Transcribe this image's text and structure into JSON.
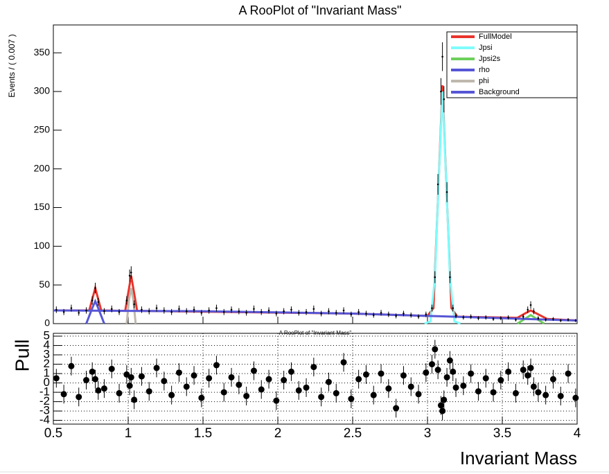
{
  "chart_data": [
    {
      "type": "scatter",
      "title": "A RooPlot of \"Invariant Mass\"",
      "y_label": "Events / ( 0.007 )",
      "xlim": [
        0.5,
        4
      ],
      "ylim": [
        0,
        386
      ],
      "xticks": [
        0.5,
        1,
        1.5,
        2,
        2.5,
        3,
        3.5,
        4
      ],
      "yticks": [
        0,
        50,
        100,
        150,
        200,
        250,
        300,
        350
      ],
      "color": "#000000",
      "legend": "top-right",
      "x": [
        0.52,
        0.57,
        0.62,
        0.67,
        0.72,
        0.76,
        0.78,
        0.8,
        0.84,
        0.89,
        0.94,
        0.99,
        1.01,
        1.02,
        1.04,
        1.09,
        1.14,
        1.19,
        1.24,
        1.29,
        1.34,
        1.39,
        1.44,
        1.49,
        1.54,
        1.59,
        1.64,
        1.69,
        1.74,
        1.79,
        1.84,
        1.89,
        1.94,
        1.99,
        2.04,
        2.09,
        2.14,
        2.19,
        2.24,
        2.29,
        2.34,
        2.39,
        2.44,
        2.49,
        2.54,
        2.59,
        2.64,
        2.69,
        2.74,
        2.79,
        2.84,
        2.89,
        2.94,
        2.99,
        3.03,
        3.05,
        3.07,
        3.09,
        3.1,
        3.11,
        3.13,
        3.15,
        3.17,
        3.19,
        3.24,
        3.29,
        3.34,
        3.39,
        3.44,
        3.49,
        3.54,
        3.59,
        3.64,
        3.67,
        3.69,
        3.71,
        3.74,
        3.79,
        3.84,
        3.89,
        3.94,
        3.99
      ],
      "values": [
        18,
        15,
        20,
        14,
        17,
        30,
        46,
        28,
        16,
        19,
        15,
        30,
        62,
        66,
        25,
        18,
        16,
        20,
        17,
        15,
        19,
        16,
        18,
        14,
        17,
        20,
        15,
        18,
        16,
        14,
        19,
        15,
        17,
        13,
        16,
        18,
        14,
        15,
        19,
        13,
        16,
        14,
        17,
        12,
        15,
        13,
        11,
        14,
        12,
        10,
        13,
        11,
        9,
        12,
        20,
        60,
        180,
        300,
        345,
        290,
        170,
        60,
        20,
        10,
        8,
        9,
        7,
        8,
        6,
        7,
        8,
        5,
        9,
        18,
        24,
        16,
        7,
        5,
        6,
        4,
        5,
        4
      ],
      "errors": [
        4.2,
        3.9,
        4.5,
        3.7,
        4.1,
        5.5,
        6.8,
        5.3,
        4,
        4.4,
        3.9,
        5.5,
        7.9,
        8.1,
        5,
        4.2,
        4,
        4.5,
        4.1,
        3.9,
        4.4,
        4,
        4.2,
        3.7,
        4.1,
        4.5,
        3.9,
        4.2,
        4,
        3.7,
        4.4,
        3.9,
        4.1,
        3.6,
        4,
        4.2,
        3.7,
        3.9,
        4.4,
        3.6,
        4,
        3.7,
        4.1,
        3.5,
        3.9,
        3.6,
        3.3,
        3.7,
        3.5,
        3.2,
        3.6,
        3.3,
        3,
        3.5,
        4.5,
        7.7,
        13.4,
        17.3,
        18.6,
        17,
        13,
        7.7,
        4.5,
        3.2,
        2.8,
        3,
        2.6,
        2.8,
        2.4,
        2.6,
        2.8,
        2.2,
        3,
        4.2,
        4.9,
        4,
        2.6,
        2.2,
        2.4,
        2,
        2.2,
        2
      ],
      "series": [
        {
          "name": "FullModel",
          "color": "#e8342c",
          "x": [
            0.5,
            0.74,
            0.78,
            0.82,
            0.98,
            1.02,
            1.06,
            2.5,
            3.0,
            3.04,
            3.07,
            3.1,
            3.13,
            3.16,
            3.2,
            3.6,
            3.66,
            3.69,
            3.72,
            3.8,
            4
          ],
          "values": [
            17,
            17,
            46,
            17,
            16.5,
            62,
            16.5,
            13,
            10,
            20,
            160,
            308,
            160,
            20,
            9,
            7.5,
            14,
            17,
            14,
            6,
            4
          ]
        },
        {
          "name": "Jpsi",
          "color": "#7ffcfc",
          "x": [
            2.98,
            3.02,
            3.05,
            3.07,
            3.1,
            3.13,
            3.15,
            3.18,
            3.22
          ],
          "values": [
            0,
            3,
            60,
            160,
            300,
            160,
            60,
            3,
            0
          ]
        },
        {
          "name": "Jpsi2s",
          "color": "#6ccf5a",
          "x": [
            3.6,
            3.65,
            3.69,
            3.73,
            3.78
          ],
          "values": [
            0,
            6,
            11,
            6,
            0
          ]
        },
        {
          "name": "rho",
          "color": "#5656d6",
          "x": [
            0.72,
            0.76,
            0.78,
            0.8,
            0.84
          ],
          "values": [
            0,
            20,
            29,
            20,
            0
          ]
        },
        {
          "name": "phi",
          "color": "#bfb8ad",
          "x": [
            0.99,
            1.005,
            1.02,
            1.035,
            1.05
          ],
          "values": [
            0,
            30,
            46,
            30,
            0
          ]
        },
        {
          "name": "Background",
          "color": "#5656d6",
          "x": [
            0.5,
            1,
            1.5,
            2,
            2.5,
            3,
            3.5,
            4
          ],
          "values": [
            17,
            16.5,
            16,
            14.5,
            13,
            10,
            7,
            4
          ]
        }
      ]
    },
    {
      "type": "scatter",
      "title": "A RooPlot of \"Invariant Mass\"",
      "y_label": "Pull",
      "x_label": "Invariant Mass",
      "xlim": [
        0.5,
        4
      ],
      "ylim": [
        -4.4,
        5.3
      ],
      "xticks": [
        0.5,
        1,
        1.5,
        2,
        2.5,
        3,
        3.5,
        4
      ],
      "yticks": [
        -4,
        -3,
        -2,
        -1,
        0,
        1,
        2,
        3,
        4,
        5
      ],
      "grid": true,
      "color": "#000000",
      "error": 1,
      "x": [
        0.52,
        0.57,
        0.62,
        0.67,
        0.72,
        0.76,
        0.78,
        0.8,
        0.84,
        0.89,
        0.94,
        0.99,
        1.01,
        1.02,
        1.04,
        1.09,
        1.14,
        1.19,
        1.24,
        1.29,
        1.34,
        1.39,
        1.44,
        1.49,
        1.54,
        1.59,
        1.64,
        1.69,
        1.74,
        1.79,
        1.84,
        1.89,
        1.94,
        1.99,
        2.04,
        2.09,
        2.14,
        2.19,
        2.24,
        2.29,
        2.34,
        2.39,
        2.44,
        2.49,
        2.54,
        2.59,
        2.64,
        2.69,
        2.74,
        2.79,
        2.84,
        2.89,
        2.94,
        2.99,
        3.03,
        3.05,
        3.07,
        3.09,
        3.1,
        3.11,
        3.13,
        3.15,
        3.17,
        3.19,
        3.24,
        3.29,
        3.34,
        3.39,
        3.44,
        3.49,
        3.54,
        3.59,
        3.64,
        3.67,
        3.69,
        3.71,
        3.74,
        3.79,
        3.84,
        3.89,
        3.94,
        3.99
      ],
      "values": [
        0.5,
        -1.2,
        1.8,
        -1.5,
        0.3,
        1.2,
        0.4,
        -0.8,
        -0.6,
        1.5,
        -1.1,
        0.9,
        -0.3,
        0.6,
        -1.8,
        0.7,
        -0.9,
        1.6,
        0.2,
        -1.3,
        1.1,
        -0.4,
        0.8,
        -1.6,
        0.5,
        1.9,
        -1.0,
        0.6,
        -0.2,
        -1.4,
        1.3,
        -0.7,
        0.4,
        -1.9,
        0.3,
        1.2,
        -0.8,
        -0.5,
        1.7,
        -1.5,
        0.1,
        -1.1,
        2.2,
        -1.7,
        0.4,
        0.9,
        -1.3,
        1.0,
        -0.6,
        -2.7,
        0.8,
        -0.4,
        -1.2,
        1.1,
        2.0,
        3.6,
        1.4,
        -2.4,
        -3.0,
        -1.8,
        0.6,
        2.4,
        1.2,
        -0.5,
        -0.3,
        1.0,
        -0.9,
        0.5,
        -1.0,
        0.3,
        1.2,
        -1.1,
        1.4,
        0.8,
        1.6,
        -0.4,
        -1.0,
        -1.3,
        0.4,
        -1.4,
        1.0,
        -1.6
      ]
    }
  ]
}
